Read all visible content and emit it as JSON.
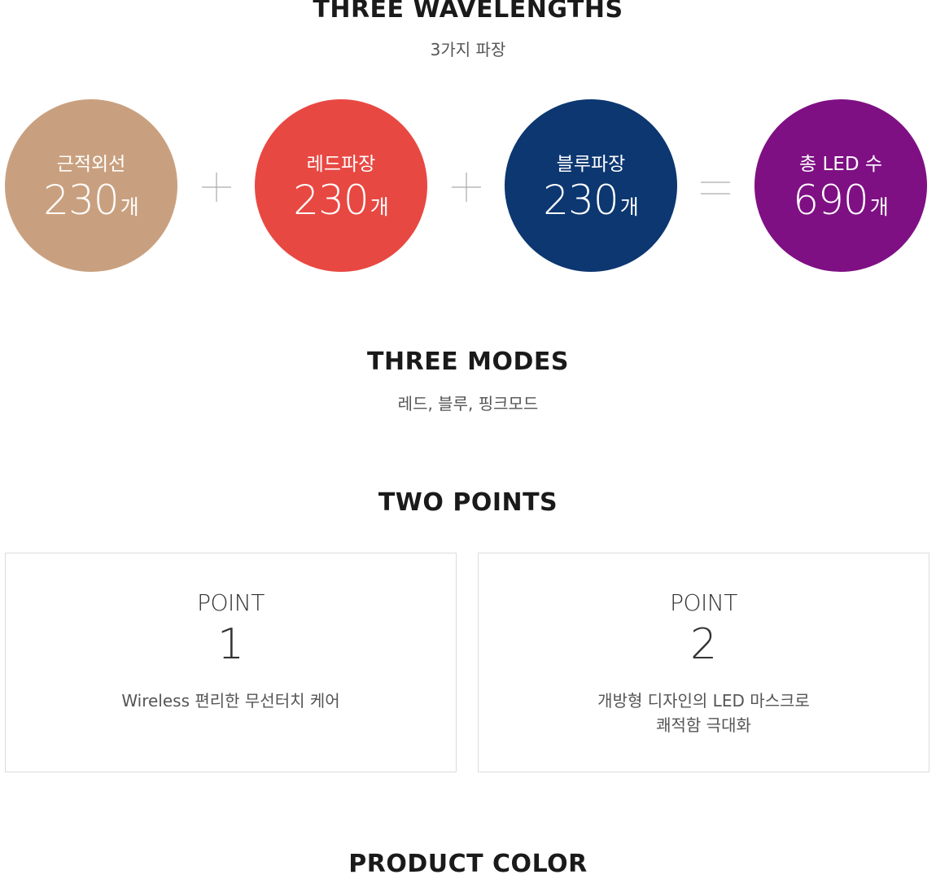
{
  "wavelengths": {
    "title": "THREE WAVELENGTHS",
    "subtitle": "3가지 파장",
    "circles": [
      {
        "label": "근적외선",
        "value": "230",
        "unit": "개",
        "color": "#c9a07f"
      },
      {
        "label": "레드파장",
        "value": "230",
        "unit": "개",
        "color": "#e84842"
      },
      {
        "label": "블루파장",
        "value": "230",
        "unit": "개",
        "color": "#0c3771"
      },
      {
        "label": "총 LED 수",
        "value": "690",
        "unit": "개",
        "color": "#7f1084"
      }
    ],
    "operators": [
      "plus-icon",
      "plus-icon",
      "equals-icon"
    ]
  },
  "modes": {
    "title": "THREE MODES",
    "subtitle": "레드, 블루, 핑크모드"
  },
  "points": {
    "title": "TWO POINTS",
    "cards": [
      {
        "label": "POINT",
        "number": "1",
        "desc": [
          "Wireless 편리한 무선터치 케어"
        ]
      },
      {
        "label": "POINT",
        "number": "2",
        "desc": [
          "개방형 디자인의 LED 마스크로",
          "쾌적함 극대화"
        ]
      }
    ]
  },
  "product_color": {
    "title": "PRODUCT COLOR"
  }
}
